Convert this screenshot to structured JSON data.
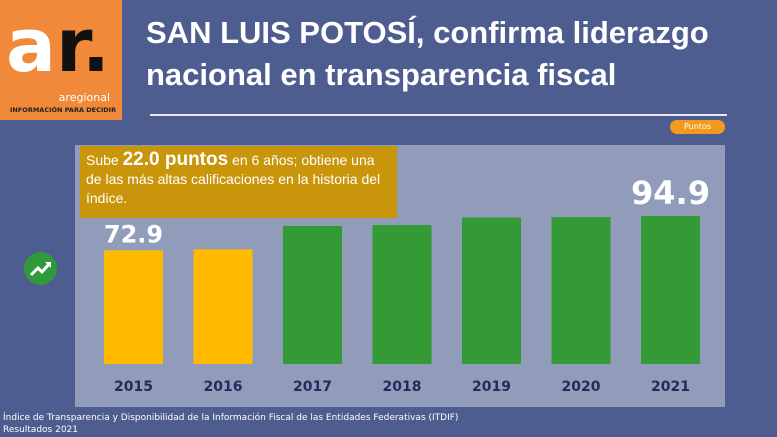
{
  "logo": {
    "brand": "ar.",
    "name": "aregional",
    "tagline": "INFORMACIÓN PARA DECIDIR"
  },
  "title": {
    "line1": "SAN LUIS POTOSÍ, confirma liderazgo",
    "line2": "nacional en transparencia fiscal"
  },
  "badge": "Puntos",
  "note": {
    "pre": "Sube ",
    "highlight": "22.0 puntos",
    "post": " en 6 años; obtiene una de las más altas calificaciones en la historia del índice."
  },
  "footer": {
    "line1": "Índice de Transparencia y Disponibilidad de la Información Fiscal de las Entidades Federativas (ITDIF)",
    "line2": "Resultados 2021"
  },
  "icons": {
    "trend": "trending-up-icon"
  },
  "chart_data": {
    "type": "bar",
    "categories": [
      "2015",
      "2016",
      "2017",
      "2018",
      "2019",
      "2020",
      "2021"
    ],
    "values": [
      72.9,
      73.5,
      88.5,
      89.1,
      93.9,
      94.2,
      94.9
    ],
    "data_labels": {
      "2015": "72.9",
      "2021": "94.9"
    },
    "colors": [
      "#ffba00",
      "#ffba00",
      "#339a36",
      "#339a36",
      "#339a36",
      "#339a36",
      "#339a36"
    ],
    "ylim": [
      0,
      100
    ],
    "grid": false
  }
}
